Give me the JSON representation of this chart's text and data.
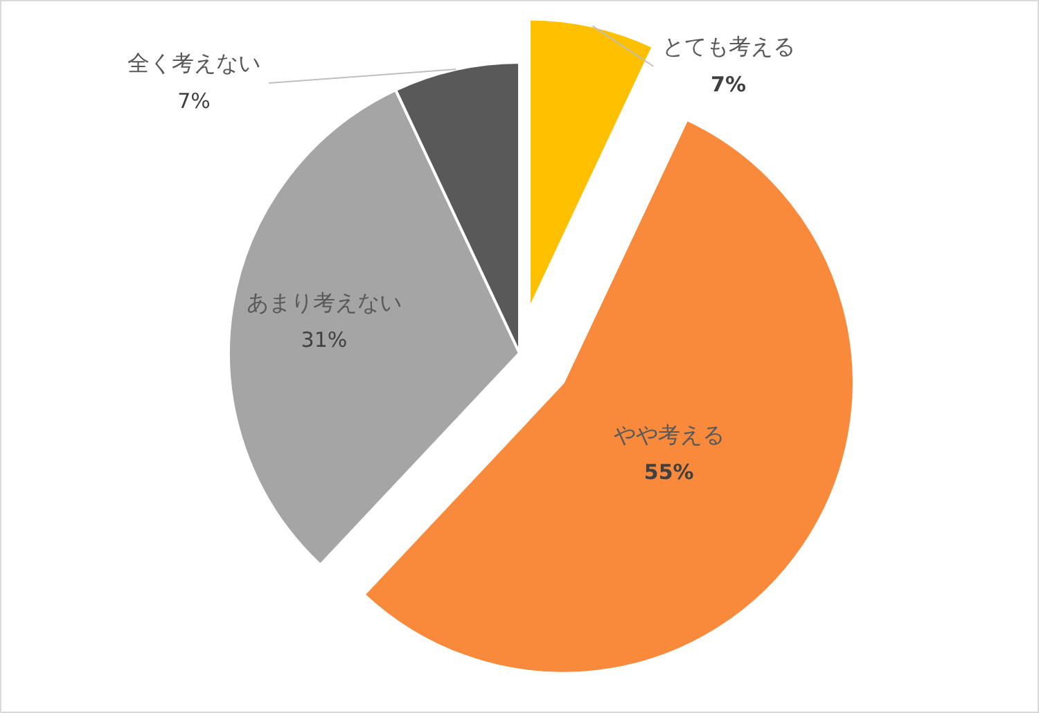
{
  "chart_data": {
    "type": "pie",
    "categories": [
      "とても考える",
      "やや考える",
      "あまり考えない",
      "全く考えない"
    ],
    "values": [
      7,
      55,
      31,
      7
    ],
    "colors": [
      "#ffc000",
      "#f98a3b",
      "#a5a5a5",
      "#595959"
    ],
    "value_labels": [
      "7%",
      "55%",
      "31%",
      "7%"
    ],
    "legend": false
  }
}
